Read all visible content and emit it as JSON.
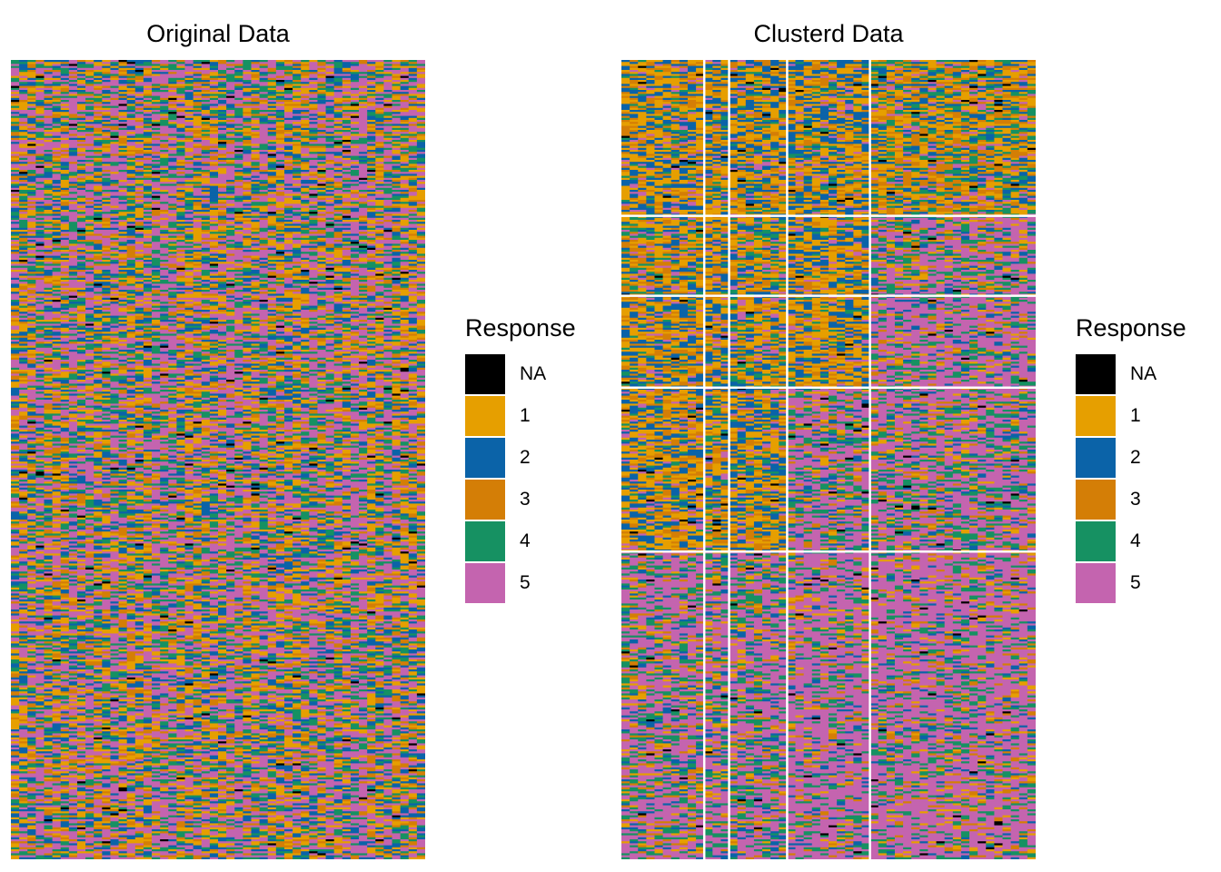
{
  "chart_data": [
    {
      "type": "heatmap",
      "title": "Original Data",
      "rows": 400,
      "columns": 50,
      "legend": {
        "title": "Response",
        "position": "right",
        "entries": [
          {
            "label": "NA",
            "color": "#000000"
          },
          {
            "label": "1",
            "color": "#E69F00"
          },
          {
            "label": "2",
            "color": "#0B63A8"
          },
          {
            "label": "3",
            "color": "#D47E06"
          },
          {
            "label": "4",
            "color": "#169162"
          },
          {
            "label": "5",
            "color": "#C464AF"
          }
        ]
      },
      "categories": [
        "NA",
        "1",
        "2",
        "3",
        "4",
        "5"
      ]
    },
    {
      "type": "heatmap",
      "title": "Clusterd Data",
      "rows": 400,
      "columns": 50,
      "row_clusters": [
        78,
        40,
        46,
        82,
        154
      ],
      "column_clusters": [
        10,
        3,
        7,
        10,
        20
      ],
      "legend": {
        "title": "Response",
        "position": "right",
        "entries": [
          {
            "label": "NA",
            "color": "#000000"
          },
          {
            "label": "1",
            "color": "#E69F00"
          },
          {
            "label": "2",
            "color": "#0B63A8"
          },
          {
            "label": "3",
            "color": "#D47E06"
          },
          {
            "label": "4",
            "color": "#169162"
          },
          {
            "label": "5",
            "color": "#C464AF"
          }
        ]
      },
      "categories": [
        "NA",
        "1",
        "2",
        "3",
        "4",
        "5"
      ]
    }
  ]
}
